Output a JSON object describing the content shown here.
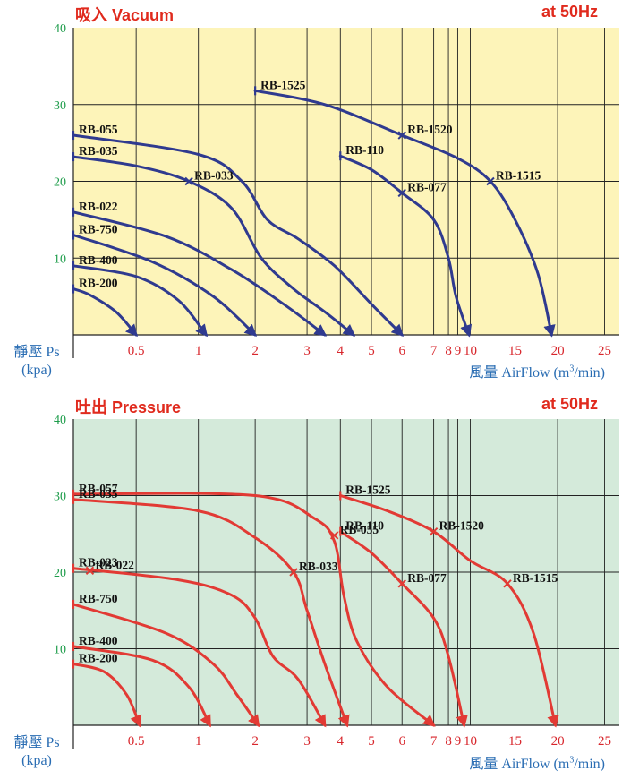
{
  "chart_data": [
    {
      "type": "line",
      "title": "吸入 Vacuum",
      "subtitle": "at 50Hz",
      "ylabel": "靜壓 Ps (kpa)",
      "ylabel_lines": [
        "靜壓 Ps",
        "(kpa)"
      ],
      "xlabel": "風量 AirFlow (m³/min)",
      "xlabel_parts": {
        "before": "風量 AirFlow  (m",
        "sup": "3",
        "after": "/min)"
      },
      "xscale": "log",
      "xlim": [
        0.25,
        26
      ],
      "ylim": [
        0,
        40
      ],
      "xticks": [
        "0.5",
        "1",
        "2",
        "3",
        "4",
        "5",
        "6",
        "7",
        "8",
        "9",
        "10",
        "15",
        "20",
        "25"
      ],
      "xtick_values": [
        0.5,
        1,
        2,
        3,
        4,
        5,
        6,
        7,
        8,
        9,
        10,
        15,
        20,
        25
      ],
      "yticks": [
        "40",
        "30",
        "20",
        "10"
      ],
      "ytick_values": [
        40,
        30,
        20,
        10
      ],
      "grid": true,
      "background": "#fdf4b9",
      "line_color": "#2f3a8f",
      "series": [
        {
          "name": "RB-200",
          "x": [
            0.25,
            0.3,
            0.4,
            0.5
          ],
          "y": [
            6,
            5.2,
            3,
            0
          ]
        },
        {
          "name": "RB-400",
          "x": [
            0.25,
            0.5,
            0.8,
            1.1
          ],
          "y": [
            9,
            7.6,
            4.5,
            0
          ]
        },
        {
          "name": "RB-750",
          "x": [
            0.25,
            0.6,
            1.2,
            2.0
          ],
          "y": [
            13,
            9.5,
            5,
            0
          ]
        },
        {
          "name": "RB-022",
          "x": [
            0.25,
            0.7,
            1.5,
            2.5,
            3.5
          ],
          "y": [
            16,
            12.8,
            8.5,
            4,
            0
          ]
        },
        {
          "name": "RB-033",
          "x": [
            0.25,
            0.5,
            0.9,
            1.5,
            2.1,
            2.7,
            3.5,
            4.4
          ],
          "y": [
            23.2,
            22,
            20,
            16.5,
            10,
            6,
            3,
            0
          ]
        },
        {
          "name": "RB-055",
          "x": [
            0.25,
            1.0,
            1.7,
            2.2,
            2.8,
            3.8,
            5.0,
            6.0
          ],
          "y": [
            26,
            23.5,
            20,
            15,
            12.5,
            9,
            4,
            0
          ]
        },
        {
          "name": "RB-110",
          "x": [
            4.0,
            5.0,
            6.0,
            7.0,
            8.0,
            8.8,
            9.9
          ],
          "y": [
            23.3,
            21.5,
            18.5,
            15,
            10,
            5,
            0
          ]
        },
        {
          "name": "RB-1525",
          "x": [
            2.0,
            3.5,
            6.0,
            9.0,
            12.0,
            15.0,
            17.5,
            19.2
          ],
          "y": [
            31.8,
            30,
            26,
            23,
            20,
            15,
            8,
            0
          ]
        }
      ],
      "markers": [
        {
          "label": "RB-200",
          "x": 0.25,
          "y": 6,
          "side": "start"
        },
        {
          "label": "RB-400",
          "x": 0.25,
          "y": 9,
          "side": "start"
        },
        {
          "label": "RB-750",
          "x": 0.25,
          "y": 13,
          "side": "start"
        },
        {
          "label": "RB-022",
          "x": 0.25,
          "y": 16,
          "side": "start"
        },
        {
          "label": "RB-035",
          "x": 0.25,
          "y": 23.2,
          "side": "start"
        },
        {
          "label": "RB-055",
          "x": 0.25,
          "y": 26,
          "side": "start"
        },
        {
          "label": "RB-033",
          "x": 0.9,
          "y": 20,
          "side": "mid"
        },
        {
          "label": "RB-110",
          "x": 4.0,
          "y": 23.3,
          "side": "start"
        },
        {
          "label": "RB-077",
          "x": 6.0,
          "y": 18.5,
          "side": "mid"
        },
        {
          "label": "RB-1525",
          "x": 2.0,
          "y": 31.8,
          "side": "start"
        },
        {
          "label": "RB-1520",
          "x": 6.0,
          "y": 26,
          "side": "mid"
        },
        {
          "label": "RB-1515",
          "x": 12.0,
          "y": 20,
          "side": "mid"
        }
      ]
    },
    {
      "type": "line",
      "title": "吐出 Pressure",
      "subtitle": "at 50Hz",
      "ylabel": "靜壓 Ps (kpa)",
      "ylabel_lines": [
        "靜壓 Ps",
        "(kpa)"
      ],
      "xlabel": "風量 AirFlow (m³/min)",
      "xlabel_parts": {
        "before": "風量 AirFlow  (m",
        "sup": "3",
        "after": "/min)"
      },
      "xscale": "log",
      "xlim": [
        0.25,
        26
      ],
      "ylim": [
        0,
        40
      ],
      "xticks": [
        "0.5",
        "1",
        "2",
        "3",
        "4",
        "5",
        "6",
        "7",
        "8",
        "9",
        "10",
        "15",
        "20",
        "25"
      ],
      "xtick_values": [
        0.5,
        1,
        2,
        3,
        4,
        5,
        6,
        7,
        8,
        9,
        10,
        15,
        20,
        25
      ],
      "yticks": [
        "40",
        "30",
        "20",
        "10"
      ],
      "ytick_values": [
        40,
        30,
        20,
        10
      ],
      "grid": true,
      "background": "#d4eada",
      "line_color": "#e23a34",
      "series": [
        {
          "name": "RB-200",
          "x": [
            0.25,
            0.35,
            0.45,
            0.52
          ],
          "y": [
            8,
            7,
            4,
            0
          ]
        },
        {
          "name": "RB-400",
          "x": [
            0.25,
            0.6,
            0.9,
            1.15
          ],
          "y": [
            10.3,
            8.5,
            5,
            0
          ]
        },
        {
          "name": "RB-750",
          "x": [
            0.25,
            0.7,
            1.2,
            1.6,
            2.05
          ],
          "y": [
            15.8,
            12,
            8,
            4,
            0
          ]
        },
        {
          "name": "RB-022",
          "x": [
            0.25,
            0.8,
            1.5,
            2.0,
            2.3,
            2.8,
            3.5
          ],
          "y": [
            20.5,
            19,
            17,
            14,
            9,
            6,
            0
          ]
        },
        {
          "name": "RB-033",
          "x": [
            0.25,
            1.0,
            2.0,
            2.7,
            3.0,
            3.5,
            4.2
          ],
          "y": [
            29.5,
            28,
            24.5,
            20,
            15,
            8,
            0
          ]
        },
        {
          "name": "RB-055",
          "x": [
            0.25,
            2.0,
            3.2,
            3.8,
            4.1,
            4.5,
            5.5,
            7.0
          ],
          "y": [
            30.2,
            30,
            27,
            24,
            17,
            11,
            5,
            0
          ]
        },
        {
          "name": "RB-110",
          "x": [
            4.0,
            5.0,
            6.0,
            7.0,
            8.0,
            9.5
          ],
          "y": [
            25.3,
            22.5,
            18.5,
            14,
            9,
            0
          ]
        },
        {
          "name": "RB-1525",
          "x": [
            4.0,
            5.5,
            7.0,
            10.0,
            14.0,
            17.0,
            19.7
          ],
          "y": [
            30,
            28,
            25.3,
            21.5,
            18.5,
            12,
            0
          ]
        }
      ],
      "markers": [
        {
          "label": "RB-200",
          "x": 0.25,
          "y": 8,
          "side": "start"
        },
        {
          "label": "RB-400",
          "x": 0.25,
          "y": 10.3,
          "side": "start"
        },
        {
          "label": "RB-750",
          "x": 0.25,
          "y": 15.8,
          "side": "start"
        },
        {
          "label": "RB-023",
          "x": 0.25,
          "y": 20.5,
          "side": "start"
        },
        {
          "label": "RB-022",
          "x": 0.3,
          "y": 20.2,
          "side": "mid"
        },
        {
          "label": "RB-057",
          "x": 0.25,
          "y": 30.2,
          "side": "start"
        },
        {
          "label": "RB-035",
          "x": 0.25,
          "y": 29.5,
          "side": "start"
        },
        {
          "label": "RB-033",
          "x": 2.7,
          "y": 20,
          "side": "mid"
        },
        {
          "label": "RB-055",
          "x": 3.8,
          "y": 24.8,
          "side": "mid"
        },
        {
          "label": "RB-110",
          "x": 4.0,
          "y": 25.3,
          "side": "start"
        },
        {
          "label": "RB-077",
          "x": 6.0,
          "y": 18.5,
          "side": "mid"
        },
        {
          "label": "RB-1525",
          "x": 4.0,
          "y": 30,
          "side": "start"
        },
        {
          "label": "RB-1520",
          "x": 7.0,
          "y": 25.3,
          "side": "mid"
        },
        {
          "label": "RB-1515",
          "x": 14.0,
          "y": 18.5,
          "side": "mid"
        }
      ]
    }
  ]
}
